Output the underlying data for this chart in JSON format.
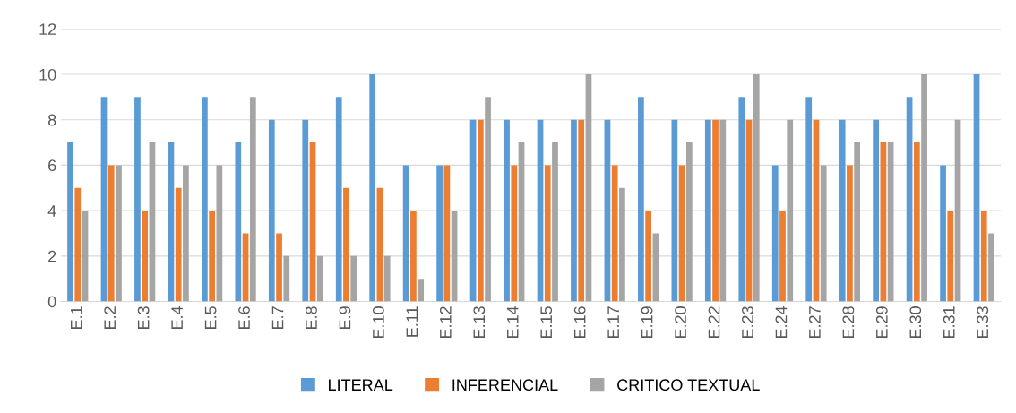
{
  "chart_data": {
    "type": "bar",
    "categories": [
      "E.1",
      "E.2",
      "E.3",
      "E.4",
      "E.5",
      "E.6",
      "E.7",
      "E.8",
      "E.9",
      "E.10",
      "E.11",
      "E.12",
      "E.13",
      "E.14",
      "E.15",
      "E.16",
      "E.17",
      "E.19",
      "E.20",
      "E.22",
      "E.23",
      "E.24",
      "E.27",
      "E.28",
      "E.29",
      "E.30",
      "E.31",
      "E.33"
    ],
    "series": [
      {
        "name": "LITERAL",
        "color": "#5b9bd5",
        "values": [
          7,
          9,
          9,
          7,
          9,
          7,
          8,
          8,
          9,
          10,
          6,
          6,
          8,
          8,
          8,
          8,
          8,
          9,
          8,
          8,
          9,
          6,
          9,
          8,
          8,
          9,
          6,
          10
        ]
      },
      {
        "name": "INFERENCIAL",
        "color": "#ed7d31",
        "values": [
          5,
          6,
          4,
          5,
          4,
          3,
          3,
          7,
          5,
          5,
          4,
          6,
          8,
          6,
          6,
          8,
          6,
          4,
          6,
          8,
          8,
          4,
          8,
          6,
          7,
          7,
          4,
          4
        ]
      },
      {
        "name": "CRITICO TEXTUAL",
        "color": "#a5a5a5",
        "values": [
          4,
          6,
          7,
          6,
          6,
          9,
          2,
          2,
          2,
          2,
          1,
          4,
          9,
          7,
          7,
          10,
          5,
          3,
          7,
          8,
          10,
          8,
          6,
          7,
          7,
          10,
          8,
          3
        ]
      }
    ],
    "ylim": [
      0,
      12
    ],
    "yticks": [
      0,
      2,
      4,
      6,
      8,
      10,
      12
    ],
    "grid": "y",
    "legend": "bottom"
  }
}
